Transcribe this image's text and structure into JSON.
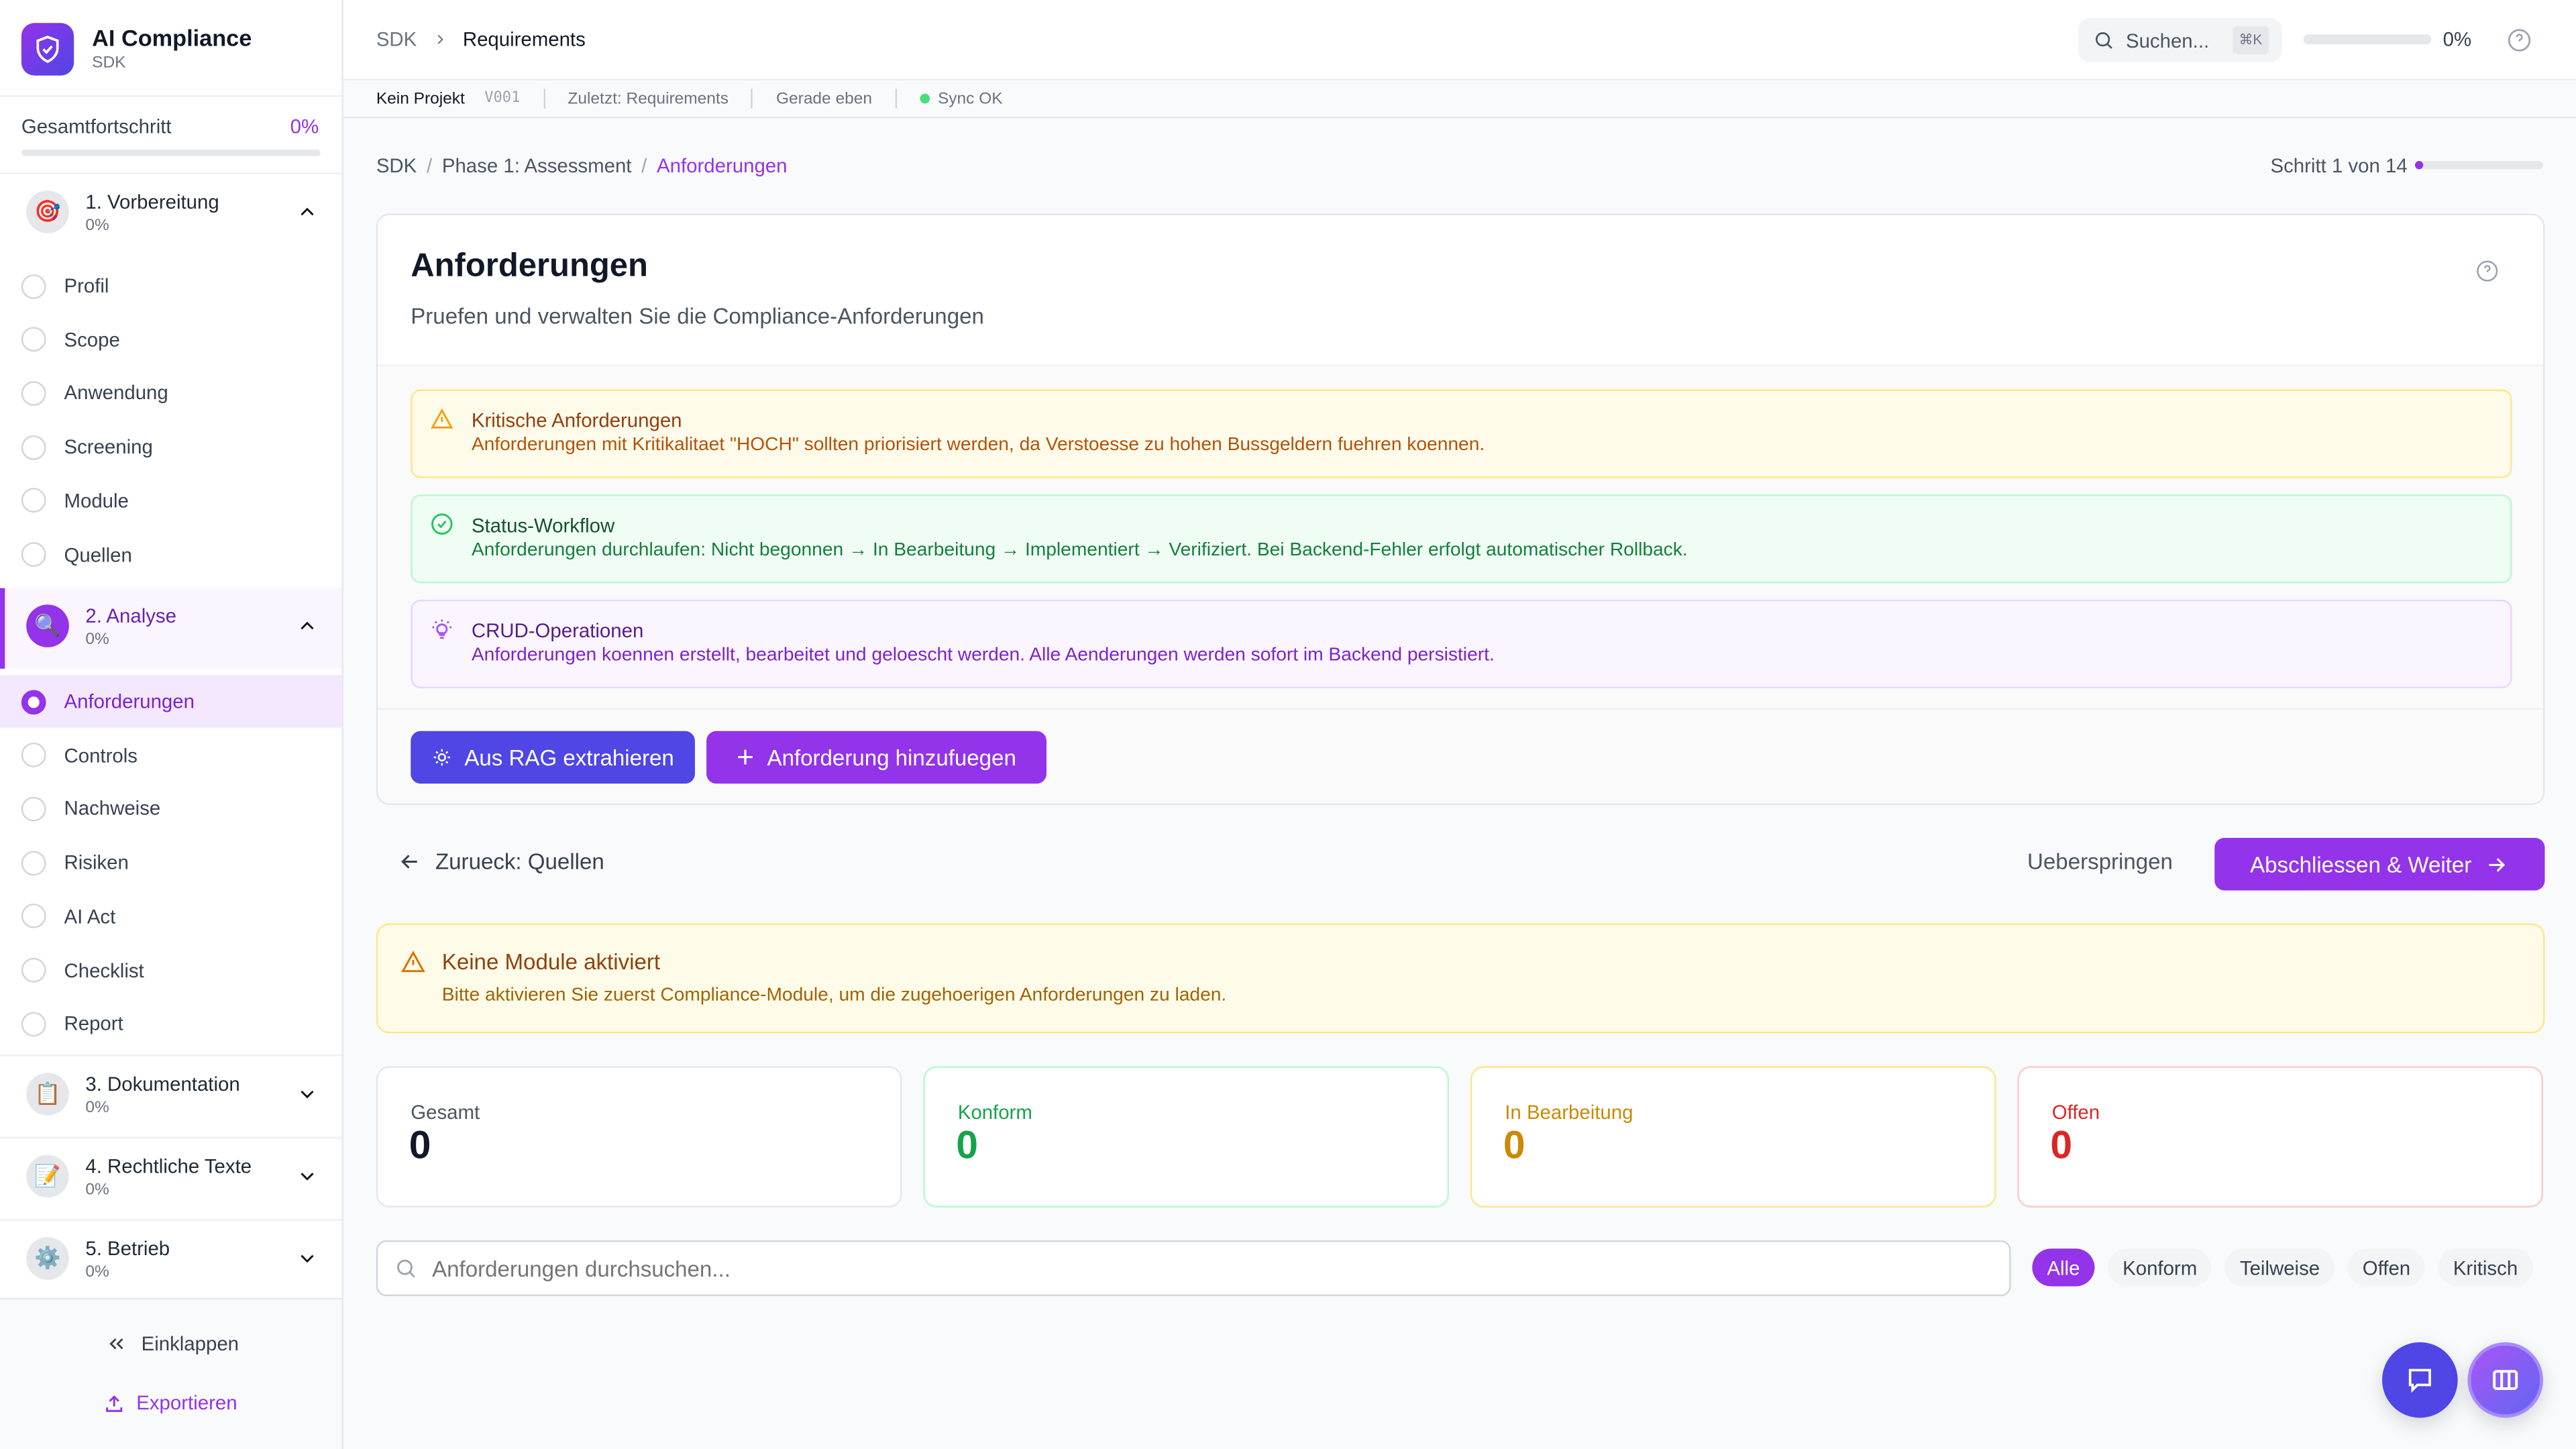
{
  "app": {
    "title": "AI Compliance",
    "subtitle": "SDK"
  },
  "sidebar": {
    "progress_label": "Gesamtfortschritt",
    "progress_value": "0%",
    "progress_fraction": 0,
    "sections": [
      {
        "label": "1. Vorbereitung",
        "progress": "0%",
        "icon": "target-icon",
        "expanded": true,
        "items": [
          {
            "label": "Profil"
          },
          {
            "label": "Scope"
          },
          {
            "label": "Anwendung"
          },
          {
            "label": "Screening"
          },
          {
            "label": "Module"
          },
          {
            "label": "Quellen"
          }
        ]
      },
      {
        "label": "2. Analyse",
        "progress": "0%",
        "icon": "magnifier-icon",
        "expanded": true,
        "items": [
          {
            "label": "Anforderungen",
            "active": true
          },
          {
            "label": "Controls"
          },
          {
            "label": "Nachweise"
          },
          {
            "label": "Risiken"
          },
          {
            "label": "AI Act"
          },
          {
            "label": "Checklist"
          },
          {
            "label": "Report"
          }
        ]
      },
      {
        "label": "3. Dokumentation",
        "progress": "0%",
        "icon": "clipboard-icon",
        "expanded": false
      },
      {
        "label": "4. Rechtliche Texte",
        "progress": "0%",
        "icon": "memo-pencil-icon",
        "expanded": false
      },
      {
        "label": "5. Betrieb",
        "progress": "0%",
        "icon": "gear-icon",
        "expanded": false
      }
    ],
    "collapse_label": "Einklappen",
    "export_label": "Exportieren"
  },
  "topbar": {
    "breadcrumb": [
      "SDK",
      "Requirements"
    ],
    "search_placeholder": "Suchen...",
    "shortcut": "⌘K",
    "progress_value": "0%",
    "progress_fraction": 0
  },
  "statusbar": {
    "project": "Kein Projekt",
    "version": "V001",
    "last": "Zuletzt: Requirements",
    "time": "Gerade eben",
    "sync": "Sync OK"
  },
  "breadcrumb": [
    "SDK",
    "/",
    "Phase 1: Assessment",
    "/",
    "Anforderungen"
  ],
  "step": {
    "label": "Schritt 1 von 14",
    "current": 1,
    "total": 14
  },
  "page": {
    "title": "Anforderungen",
    "subtitle": "Pruefen und verwalten Sie die Compliance-Anforderungen"
  },
  "alerts": [
    {
      "title": "Kritische Anforderungen",
      "text": "Anforderungen mit Kritikalitaet \"HOCH\" sollten priorisiert werden, da Verstoesse zu hohen Bussgeldern fuehren koennen."
    },
    {
      "title": "Status-Workflow",
      "text": "Anforderungen durchlaufen: Nicht begonnen → In Bearbeitung → Implementiert → Verifiziert. Bei Backend-Fehler erfolgt automatischer Rollback."
    },
    {
      "title": "CRUD-Operationen",
      "text": "Anforderungen koennen erstellt, bearbeitet und geloescht werden. Alle Aenderungen werden sofort im Backend persistiert."
    }
  ],
  "actions": {
    "rag": "Aus RAG extrahieren",
    "add": "Anforderung hinzufuegen"
  },
  "nav": {
    "back": "Zurueck: Quellen",
    "skip": "Ueberspringen",
    "next": "Abschliessen & Weiter"
  },
  "warning": {
    "title": "Keine Module aktiviert",
    "text": "Bitte aktivieren Sie zuerst Compliance-Module, um die zugehoerigen Anforderungen zu laden."
  },
  "stats": [
    {
      "label": "Gesamt",
      "value": "0",
      "color": "#111827"
    },
    {
      "label": "Konform",
      "value": "0",
      "color": "#16a34a"
    },
    {
      "label": "In Bearbeitung",
      "value": "0",
      "color": "#ca8a04"
    },
    {
      "label": "Offen",
      "value": "0",
      "color": "#dc2626"
    }
  ],
  "search": {
    "placeholder": "Anforderungen durchsuchen...",
    "value": ""
  },
  "filters": [
    {
      "label": "Alle",
      "active": true
    },
    {
      "label": "Konform"
    },
    {
      "label": "Teilweise"
    },
    {
      "label": "Offen"
    },
    {
      "label": "Kritisch"
    }
  ],
  "colors": {
    "accent": "#9333ea",
    "indigo": "#4f46e5"
  }
}
